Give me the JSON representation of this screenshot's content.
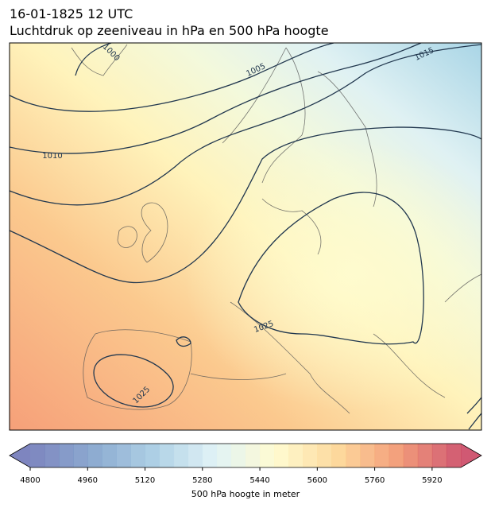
{
  "header": {
    "date": "16-01-1825 12 UTC",
    "title": "Luchtdruk op zeeniveau in hPa en 500 hPa hoogte"
  },
  "map": {
    "contour_labels": [
      "1000",
      "1005",
      "1010",
      "1015",
      "1025",
      "1025"
    ]
  },
  "colorbar": {
    "lim": [
      4800,
      6000
    ],
    "ticks": [
      4800,
      4960,
      5120,
      5280,
      5440,
      5600,
      5760,
      5920
    ],
    "label": "500 hPa hoogte in meter"
  }
}
